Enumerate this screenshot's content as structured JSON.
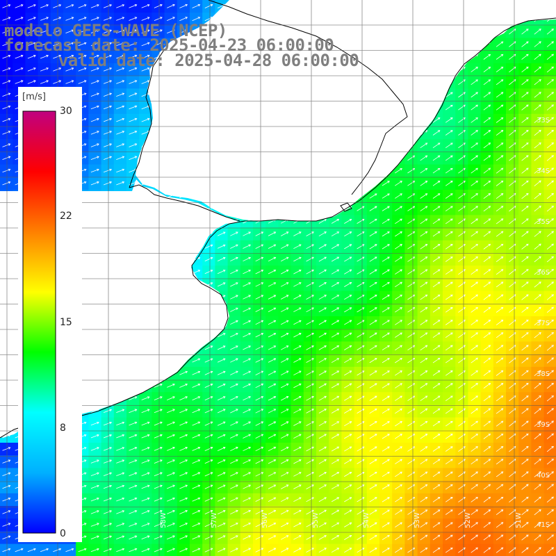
{
  "title": {
    "model": "modelo GEFS-WAVE (NCEP)",
    "forecast": "forecast date: 2025-04-23 06:00:00",
    "valid": "   valid date: 2025-04-28 06:00:00"
  },
  "colorbar": {
    "unit": "[m/s]",
    "ticks": [
      "30",
      "22",
      "15",
      "8",
      "0"
    ],
    "colors": [
      "#0000ff",
      "#00b0ff",
      "#00ffff",
      "#00ff00",
      "#ffff00",
      "#ff8000",
      "#ff0000",
      "#c00080"
    ]
  },
  "lat_labels": [
    "33S",
    "34S",
    "35S",
    "36S",
    "37S",
    "38S",
    "39S",
    "40S",
    "41S"
  ],
  "lon_labels": [
    "58W",
    "57W",
    "56W",
    "55W",
    "54W",
    "53W",
    "52W",
    "51W"
  ],
  "colors": {
    "land": "#ffffff",
    "coast": "#000000",
    "grid": "#5a5a5a",
    "arrow": "#ffffff"
  }
}
